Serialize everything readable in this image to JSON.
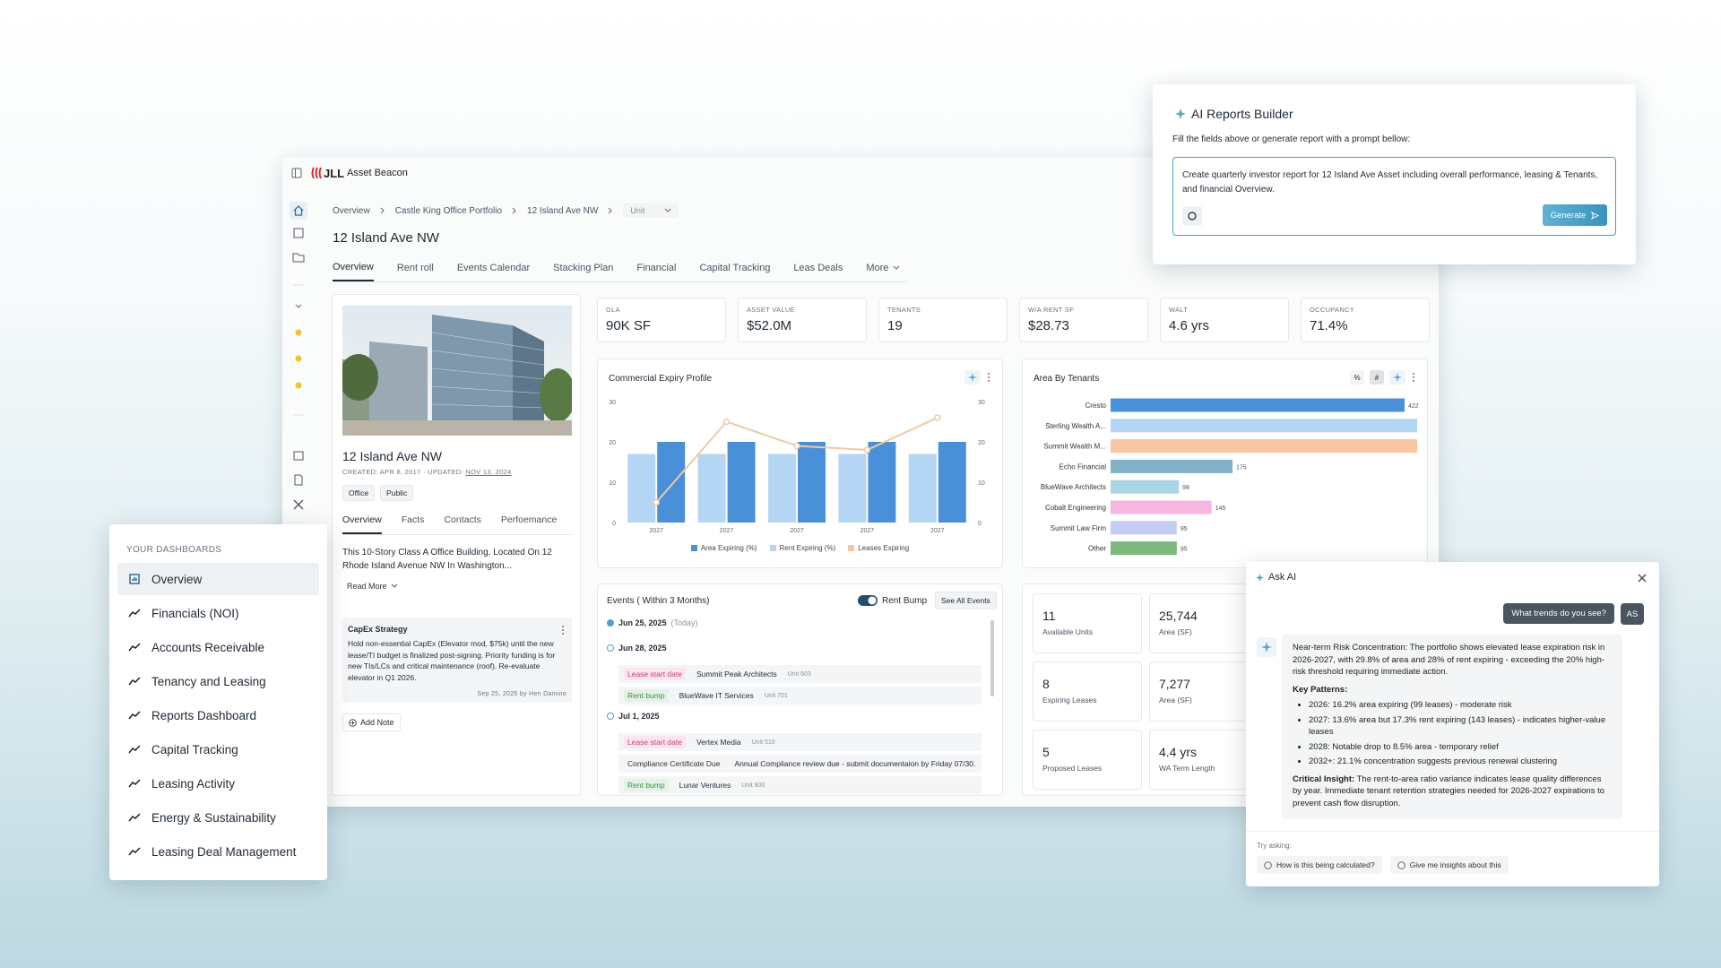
{
  "app": {
    "brand": "JLL",
    "product": "Asset Beacon"
  },
  "breadcrumb": [
    "Overview",
    "Castle King Office Portfolio",
    "12 Island Ave NW",
    "Unit"
  ],
  "page_title": "12 Island Ave NW",
  "tabs": [
    "Overview",
    "Rent roll",
    "Events Calendar",
    "Stacking Plan",
    "Financial",
    "Capital Tracking",
    "Leas Deals",
    "More"
  ],
  "property": {
    "name": "12 Island Ave NW",
    "created": "CREATED: APR 8, 2017 · UPDATED:",
    "updated": "NOV 13, 2024",
    "tags": [
      "Office",
      "Public"
    ],
    "tabs": [
      "Overview",
      "Facts",
      "Contacts",
      "Perfoemance"
    ],
    "description": "This 10-Story Class A Office Building, Located On 12 Rhode Island Avenue NW In Washington...",
    "read_more": "Read More",
    "note": {
      "title": "CapEx Strategy",
      "body": "Hold non-essential CapEx (Elevator mod, $75k) until the new lease/TI budget is finalized post-signing. Priority funding is for new TIs/LCs and critical maintenance (roof). Re-evaluate elevator in Q1 2026.",
      "footer": "Sep 25, 2025 by Hen Damino"
    },
    "add_note": "Add Note"
  },
  "kpis": [
    {
      "label": "GLA",
      "value": "90K SF"
    },
    {
      "label": "ASSET VALUE",
      "value": "$52.0M"
    },
    {
      "label": "TENANTS",
      "value": "19"
    },
    {
      "label": "W/A RENT SF",
      "value": "$28.73"
    },
    {
      "label": "WALT",
      "value": "4.6 yrs"
    },
    {
      "label": "OCCUPANCY",
      "value": "71.4%"
    }
  ],
  "chart_data": [
    {
      "type": "bar",
      "title": "Commercial Expiry Profile",
      "categories": [
        "2027",
        "2027",
        "2027",
        "2027",
        "2027"
      ],
      "series": [
        {
          "name": "Area Expiring (%)",
          "color": "#4a90d9",
          "values": [
            20,
            20,
            20,
            20,
            20
          ]
        },
        {
          "name": "Rent Expiring (%)",
          "color": "#b5d5f5",
          "values": [
            17,
            17,
            17,
            17,
            17
          ]
        },
        {
          "name": "Leases Expiring",
          "color": "#f0c9a2",
          "type": "line",
          "axis": "y2",
          "values": [
            5,
            25,
            19,
            18,
            26
          ]
        }
      ],
      "ylim": [
        0,
        30
      ],
      "yticks": [
        0,
        10,
        20,
        30
      ],
      "y2lim": [
        0,
        30
      ],
      "y2ticks": [
        0,
        10,
        20,
        30
      ],
      "legend": "bottom"
    },
    {
      "type": "hbar",
      "title": "Area By Tenants",
      "toggles": [
        "%",
        "#"
      ],
      "categories": [
        "Cresto",
        "Sterling Wealth A...",
        "Summit Wealth M...",
        "Echo Financial",
        "BlueWave Architects",
        "Cobalt Engineering",
        "Summit Law Firm",
        "Other"
      ],
      "values": [
        422,
        440,
        440,
        175,
        98,
        145,
        95,
        95
      ],
      "value_labels": [
        "422",
        null,
        null,
        "175",
        "98",
        "145",
        "95",
        "95"
      ],
      "colors": [
        "#4a90d9",
        "#b5d5f5",
        "#f8c6a2",
        "#7fb2c6",
        "#a9d5e4",
        "#f5b7e0",
        "#c6cdf2",
        "#7db77c"
      ],
      "xlim": [
        0,
        440
      ]
    }
  ],
  "events": {
    "title": "Events ( Within 3 Months)",
    "toggle": "Rent Bump",
    "button": "See All Events",
    "groups": [
      {
        "date": "Jun 25, 2025",
        "note": "(Today)",
        "items": []
      },
      {
        "date": "Jun 28, 2025",
        "items": [
          {
            "tag": "Lease start date",
            "name": "Summit Peak Architects",
            "unit": "Unit 603"
          },
          {
            "tag": "Rent bump",
            "name": "BlueWave IT Services",
            "unit": "Unit 701"
          }
        ]
      },
      {
        "date": "Jul 1, 2025",
        "items": [
          {
            "tag": "Lease start date",
            "name": "Vertex Media",
            "unit": "Unit 510"
          },
          {
            "tag": "Compliance Certificate Due",
            "name": "Annual Compliance review due - submit documentaion by Friday 07/30."
          },
          {
            "tag": "Rent bump",
            "name": "Lunar Ventures",
            "unit": "Unit 800"
          }
        ]
      }
    ]
  },
  "stats": [
    {
      "value": "11",
      "label": "Available Units"
    },
    {
      "value": "25,744",
      "label": "Area (SF)"
    },
    {
      "value": "8",
      "label": "Expiring Leases"
    },
    {
      "value": "7,277",
      "label": "Area (SF)"
    },
    {
      "value": "5",
      "label": "Proposed Leases"
    },
    {
      "value": "4.4 yrs",
      "label": "WA Term Length"
    }
  ],
  "ai_reports": {
    "title": "AI Reports Builder",
    "instruction": "Fill the fields above or generate report with a prompt bellow:",
    "prompt": "Create quarterly investor report for 12 Island Ave Asset including overall performance, leasing & Tenants, and financial Overview.",
    "button": "Generate"
  },
  "dashboards": {
    "heading": "YOUR DASHBOARDS",
    "items": [
      "Overview",
      "Financials (NOI)",
      "Accounts Receivable",
      "Tenancy and Leasing",
      "Reports Dashboard",
      "Capital Tracking",
      "Leasing Activity",
      "Energy & Sustainability",
      "Leasing Deal Management"
    ]
  },
  "ask_ai": {
    "title": "Ask AI",
    "question": "What trends do you see?",
    "avatar": "AS",
    "intro": "Near-term Risk Concentration: The portfolio shows elevated lease expiration risk in 2026-2027, with 29.8% of area and 28% of rent expiring - exceeding the 20% high-risk threshold requiring immediate action.",
    "patterns_title": "Key Patterns:",
    "patterns": [
      "2026: 16.2% area expiring (99 leases) - moderate risk",
      "2027: 13.6% area but 17.3% rent expiring (143 leases) - indicates higher-value leases",
      "2028: Notable drop to 8.5% area - temporary relief",
      "2032+: 21.1% concentration suggests previous renewal clustering"
    ],
    "insight_label": "Critical Insight:",
    "insight": "The rent-to-area ratio variance indicates lease quality differences by year. Immediate tenant retention strategies needed for 2026-2027 expirations to prevent cash flow disruption.",
    "try_label": "Try asking:",
    "suggestions": [
      "How is this being calculated?",
      "Give me insights about this"
    ]
  }
}
